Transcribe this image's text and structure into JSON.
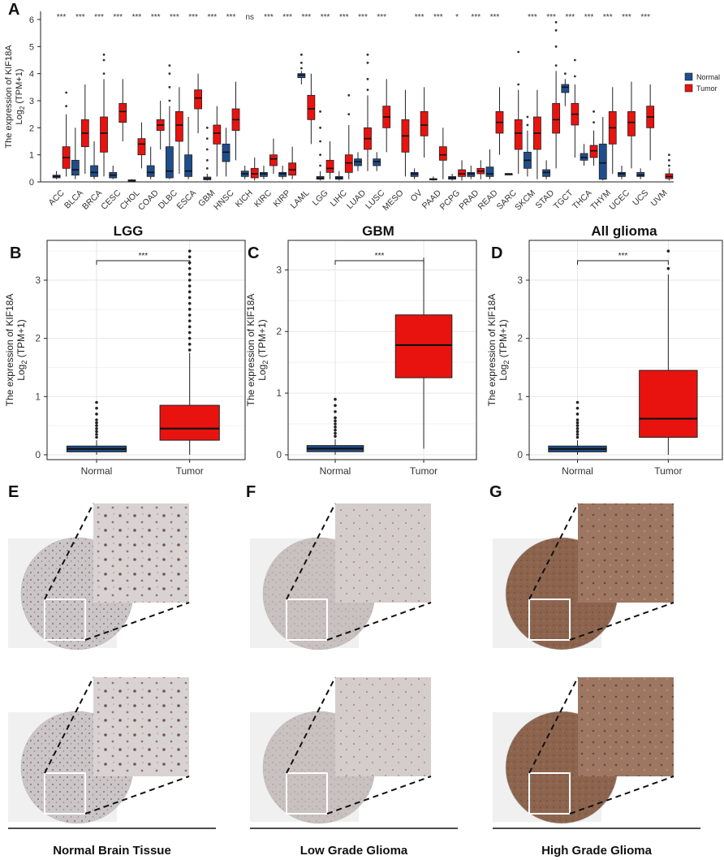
{
  "colors": {
    "normal": "#1f4e8c",
    "tumor": "#e8130f",
    "frame": "#222222",
    "grid": "#e6e6e6",
    "ihc_light": "#c9c3c6",
    "ihc_dark": "#8a5a45"
  },
  "panel_labels": [
    "A",
    "B",
    "C",
    "D",
    "E",
    "F",
    "G"
  ],
  "chart_data": [
    {
      "id": "A",
      "type": "box",
      "ylabel_line1": "The expression of KIF18A",
      "ylabel_line2": "Log",
      "ylabel_sub": "2",
      "ylabel_tail": " (TPM+1)",
      "ylim": [
        0,
        6.3
      ],
      "yticks": [
        0,
        1,
        2,
        3,
        4,
        5,
        6
      ],
      "legend": {
        "normal": "Normal",
        "tumor": "Tumor"
      },
      "categories": [
        "ACC",
        "BLCA",
        "BRCA",
        "CESC",
        "CHOL",
        "COAD",
        "DLBC",
        "ESCA",
        "GBM",
        "HNSC",
        "KICH",
        "KIRC",
        "KIRP",
        "LAML",
        "LGG",
        "LIHC",
        "LUAD",
        "LUSC",
        "MESO",
        "OV",
        "PAAD",
        "PCPG",
        "PRAD",
        "READ",
        "SARC",
        "SKCM",
        "STAD",
        "TGCT",
        "THCA",
        "THYM",
        "UCEC",
        "UCS",
        "UVM"
      ],
      "significance": [
        "***",
        "***",
        "***",
        "***",
        "***",
        "***",
        "***",
        "***",
        "***",
        "***",
        "ns",
        "***",
        "***",
        "***",
        "***",
        "***",
        "***",
        "***",
        "",
        "***",
        "***",
        "*",
        "***",
        "***",
        "",
        "***",
        "***",
        "***",
        "***",
        "***",
        "***",
        "***",
        ""
      ],
      "normal": [
        [
          0.1,
          0.15,
          0.2,
          0.25,
          0.4
        ],
        [
          0.1,
          0.25,
          0.45,
          0.8,
          2.0
        ],
        [
          0.1,
          0.2,
          0.35,
          0.6,
          1.5
        ],
        [
          0.1,
          0.15,
          0.25,
          0.35,
          0.6
        ],
        [
          0.05,
          0.05,
          0.06,
          0.07,
          0.1
        ],
        [
          0.1,
          0.2,
          0.35,
          0.6,
          1.3
        ],
        [
          0.1,
          0.15,
          0.4,
          1.3,
          2.8
        ],
        [
          0.1,
          0.2,
          0.4,
          1.0,
          2.4
        ],
        [
          0.05,
          0.08,
          0.12,
          0.18,
          0.3
        ],
        [
          0.2,
          0.75,
          1.1,
          1.4,
          2.0
        ],
        [
          0.1,
          0.2,
          0.3,
          0.4,
          0.6
        ],
        [
          0.1,
          0.2,
          0.3,
          0.35,
          0.6
        ],
        [
          0.1,
          0.2,
          0.3,
          0.35,
          0.6
        ],
        [
          3.6,
          3.85,
          3.95,
          4.0,
          4.1
        ],
        [
          0.05,
          0.1,
          0.14,
          0.2,
          0.4
        ],
        [
          0.05,
          0.1,
          0.15,
          0.2,
          0.4
        ],
        [
          0.4,
          0.6,
          0.75,
          0.85,
          1.1
        ],
        [
          0.4,
          0.6,
          0.75,
          0.85,
          1.1
        ],
        null,
        [
          0.1,
          0.2,
          0.3,
          0.35,
          0.5
        ],
        [
          0.05,
          0.08,
          0.1,
          0.12,
          0.2
        ],
        [
          0.05,
          0.1,
          0.15,
          0.2,
          0.3
        ],
        [
          0.1,
          0.2,
          0.3,
          0.35,
          0.6
        ],
        [
          0.1,
          0.2,
          0.3,
          0.55,
          1.2
        ],
        [
          0.3,
          0.3,
          0.3,
          0.3,
          0.3
        ],
        [
          0.2,
          0.5,
          0.8,
          1.1,
          1.9
        ],
        [
          0.1,
          0.2,
          0.35,
          0.45,
          0.8
        ],
        [
          2.8,
          3.3,
          3.5,
          3.6,
          3.8
        ],
        [
          0.6,
          0.8,
          0.9,
          1.05,
          1.4
        ],
        [
          0.05,
          0.1,
          0.7,
          1.4,
          2.4
        ],
        [
          0.1,
          0.2,
          0.3,
          0.35,
          0.6
        ],
        [
          0.1,
          0.2,
          0.25,
          0.35,
          0.5
        ],
        null
      ],
      "tumor": [
        [
          0.2,
          0.5,
          0.9,
          1.3,
          2.5
        ],
        [
          0.3,
          1.3,
          1.8,
          2.3,
          3.6
        ],
        [
          0.2,
          1.1,
          1.8,
          2.4,
          3.8
        ],
        [
          1.5,
          2.2,
          2.6,
          2.9,
          3.8
        ],
        [
          0.5,
          1.0,
          1.4,
          1.6,
          2.2
        ],
        [
          1.2,
          1.9,
          2.1,
          2.3,
          3.0
        ],
        [
          0.3,
          1.5,
          2.1,
          2.6,
          3.5
        ],
        [
          1.8,
          2.7,
          3.1,
          3.4,
          4.0
        ],
        [
          0.2,
          1.4,
          1.8,
          2.1,
          2.8
        ],
        [
          0.8,
          1.9,
          2.3,
          2.7,
          3.7
        ],
        [
          0.05,
          0.15,
          0.3,
          0.5,
          0.9
        ],
        [
          0.3,
          0.6,
          0.85,
          1.0,
          1.6
        ],
        [
          0.1,
          0.25,
          0.45,
          0.7,
          1.3
        ],
        [
          1.4,
          2.3,
          2.7,
          3.2,
          4.0
        ],
        [
          0.1,
          0.35,
          0.5,
          0.8,
          1.5
        ],
        [
          0.1,
          0.35,
          0.7,
          1.0,
          2.1
        ],
        [
          0.4,
          1.2,
          1.6,
          2.0,
          3.2
        ],
        [
          1.1,
          2.0,
          2.4,
          2.8,
          3.8
        ],
        [
          0.2,
          1.1,
          1.7,
          2.3,
          3.4
        ],
        [
          0.9,
          1.7,
          2.1,
          2.6,
          3.5
        ],
        [
          0.1,
          0.8,
          1.0,
          1.3,
          2.0
        ],
        [
          0.05,
          0.2,
          0.3,
          0.45,
          0.8
        ],
        [
          0.1,
          0.3,
          0.4,
          0.5,
          0.8
        ],
        [
          1.0,
          1.8,
          2.2,
          2.6,
          3.5
        ],
        [
          0.3,
          1.2,
          1.8,
          2.3,
          3.4
        ],
        [
          0.1,
          1.2,
          1.8,
          2.4,
          3.4
        ],
        [
          0.5,
          1.8,
          2.3,
          2.9,
          4.1
        ],
        [
          0.9,
          2.1,
          2.5,
          2.9,
          3.6
        ],
        [
          0.6,
          0.9,
          1.15,
          1.35,
          1.9
        ],
        [
          0.3,
          1.4,
          2.0,
          2.6,
          3.5
        ],
        [
          0.5,
          1.7,
          2.2,
          2.6,
          3.7
        ],
        [
          0.8,
          2.0,
          2.4,
          2.8,
          3.6
        ],
        [
          0.05,
          0.12,
          0.2,
          0.3,
          0.5
        ]
      ],
      "outliers": [
        {
          "i": 13,
          "g": "normal",
          "v": [
            4.2,
            4.4,
            4.7
          ]
        },
        {
          "i": 8,
          "g": "normal",
          "v": [
            0.5,
            0.8,
            1.2,
            1.6,
            2.0
          ]
        },
        {
          "i": 14,
          "g": "normal",
          "v": [
            0.6,
            1.0,
            1.5,
            2.0,
            2.6
          ]
        },
        {
          "i": 6,
          "g": "normal",
          "v": [
            3.0,
            3.5,
            4.0,
            4.3
          ]
        },
        {
          "i": 25,
          "g": "normal",
          "v": [
            2.1,
            2.4
          ]
        },
        {
          "i": 27,
          "g": "normal",
          "v": [
            4.0
          ]
        },
        {
          "i": 26,
          "g": "tumor",
          "v": [
            4.3,
            5.0,
            5.6,
            5.9
          ]
        },
        {
          "i": 24,
          "g": "tumor",
          "v": [
            3.6,
            4.8
          ]
        },
        {
          "i": 2,
          "g": "tumor",
          "v": [
            4.0,
            4.5,
            4.7
          ]
        },
        {
          "i": 16,
          "g": "tumor",
          "v": [
            3.4,
            3.8,
            4.4,
            4.7
          ]
        },
        {
          "i": 15,
          "g": "tumor",
          "v": [
            2.5,
            3.2
          ]
        },
        {
          "i": 27,
          "g": "tumor",
          "v": [
            3.9,
            4.5
          ]
        },
        {
          "i": 0,
          "g": "tumor",
          "v": [
            2.8,
            3.3
          ]
        },
        {
          "i": 32,
          "g": "tumor",
          "v": [
            0.6,
            0.8,
            1.0
          ]
        },
        {
          "i": 28,
          "g": "tumor",
          "v": [
            2.2,
            2.6
          ]
        }
      ]
    },
    {
      "id": "B",
      "type": "box",
      "title": "LGG",
      "categories": [
        "Normal",
        "Tumor"
      ],
      "ylim": [
        0,
        3.6
      ],
      "yticks": [
        0,
        1,
        2,
        3
      ],
      "significance": "***",
      "ylabel_line1": "The expression of KIF18A",
      "ylabel_line2": "Log",
      "ylabel_sub": "2",
      "ylabel_tail": " (TPM+1)",
      "normal": [
        0.0,
        0.05,
        0.1,
        0.15,
        0.25
      ],
      "tumor": [
        0.0,
        0.25,
        0.45,
        0.85,
        1.75
      ],
      "outliers_normal": [
        0.3,
        0.35,
        0.4,
        0.45,
        0.5,
        0.55,
        0.6,
        0.7,
        0.8,
        0.9
      ],
      "outliers_tumor": [
        1.8,
        1.9,
        2.0,
        2.1,
        2.2,
        2.3,
        2.4,
        2.5,
        2.6,
        2.7,
        2.8,
        2.9,
        3.0,
        3.1,
        3.2,
        3.3,
        3.4,
        3.5
      ]
    },
    {
      "id": "C",
      "type": "box",
      "title": "GBM",
      "categories": [
        "Normal",
        "Tumor"
      ],
      "ylim": [
        0,
        3.4
      ],
      "yticks": [
        0,
        1,
        2,
        3
      ],
      "significance": "***",
      "ylabel_line1": "The expression of KIF18A",
      "ylabel_line2": "Log",
      "ylabel_sub": "2",
      "ylabel_tail": " (TPM+1)",
      "normal": [
        0.0,
        0.05,
        0.1,
        0.15,
        0.25
      ],
      "tumor": [
        0.1,
        1.25,
        1.78,
        2.27,
        3.2
      ],
      "outliers_normal": [
        0.3,
        0.35,
        0.4,
        0.45,
        0.5,
        0.55,
        0.6,
        0.7,
        0.8,
        0.9
      ],
      "outliers_tumor": []
    },
    {
      "id": "D",
      "type": "box",
      "title": "All glioma",
      "categories": [
        "Normal",
        "Tumor"
      ],
      "ylim": [
        0,
        3.6
      ],
      "yticks": [
        0,
        1,
        2,
        3
      ],
      "significance": "***",
      "ylabel_line1": "The expression of KIF18A",
      "ylabel_line2": "Log",
      "ylabel_sub": "2",
      "ylabel_tail": " (TPM+1)",
      "normal": [
        0.0,
        0.05,
        0.1,
        0.15,
        0.25
      ],
      "tumor": [
        0.0,
        0.3,
        0.62,
        1.45,
        3.1
      ],
      "outliers_normal": [
        0.3,
        0.35,
        0.4,
        0.45,
        0.5,
        0.55,
        0.6,
        0.7,
        0.8,
        0.9
      ],
      "outliers_tumor": [
        3.2,
        3.5
      ]
    }
  ],
  "ihc": {
    "captions": [
      "Normal Brain Tissue",
      "Low Grade Glioma",
      "High Grade Glioma"
    ]
  }
}
